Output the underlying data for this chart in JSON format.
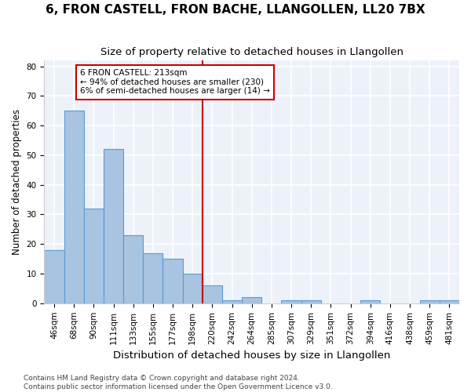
{
  "title": "6, FRON CASTELL, FRON BACHE, LLANGOLLEN, LL20 7BX",
  "subtitle": "Size of property relative to detached houses in Llangollen",
  "xlabel": "Distribution of detached houses by size in Llangollen",
  "ylabel": "Number of detached properties",
  "bar_values": [
    18,
    65,
    32,
    52,
    23,
    17,
    15,
    10,
    6,
    1,
    2,
    0,
    1,
    1,
    0,
    0,
    1,
    0,
    0,
    1,
    1
  ],
  "bar_labels": [
    "46sqm",
    "68sqm",
    "90sqm",
    "111sqm",
    "133sqm",
    "155sqm",
    "177sqm",
    "198sqm",
    "220sqm",
    "242sqm",
    "264sqm",
    "285sqm",
    "307sqm",
    "329sqm",
    "351sqm",
    "372sqm",
    "394sqm",
    "416sqm",
    "438sqm",
    "459sqm",
    "481sqm"
  ],
  "bar_color": "#a8c4e0",
  "bar_edge_color": "#5b9bd5",
  "vline_pos": 7.5,
  "vline_color": "#cc0000",
  "annotation_text": "6 FRON CASTELL: 213sqm\n← 94% of detached houses are smaller (230)\n6% of semi-detached houses are larger (14) →",
  "annotation_box_color": "#cc0000",
  "ylim": [
    0,
    82
  ],
  "yticks": [
    0,
    10,
    20,
    30,
    40,
    50,
    60,
    70,
    80
  ],
  "footer_text": "Contains HM Land Registry data © Crown copyright and database right 2024.\nContains public sector information licensed under the Open Government Licence v3.0.",
  "background_color": "#edf2fa",
  "grid_color": "#ffffff",
  "title_fontsize": 11,
  "subtitle_fontsize": 9.5,
  "ylabel_fontsize": 8.5,
  "xlabel_fontsize": 9.5,
  "tick_fontsize": 7.5,
  "footer_fontsize": 6.5
}
